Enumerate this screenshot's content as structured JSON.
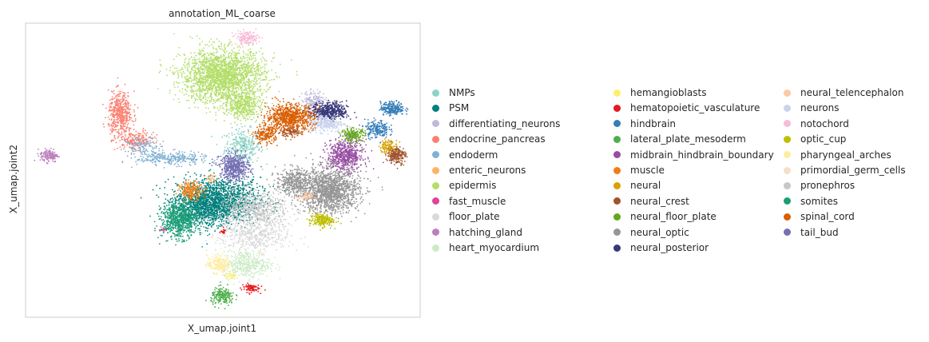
{
  "chart_data": {
    "type": "scatter",
    "title": "annotation_ML_coarse",
    "xlabel": "X_umap.joint1",
    "ylabel": "X_umap.joint2",
    "xlim": [
      0,
      100
    ],
    "ylim": [
      0,
      100
    ],
    "grid": false,
    "legend_position": "right",
    "series": [
      {
        "name": "NMPs",
        "color": "#8dd3c7",
        "clusters": [
          [
            55,
            58,
            3,
            4,
            320
          ]
        ]
      },
      {
        "name": "PSM",
        "color": "#00807d",
        "clusters": [
          [
            49,
            40,
            7,
            5,
            1400
          ],
          [
            45,
            37,
            5,
            4,
            700
          ]
        ]
      },
      {
        "name": "differentiating_neurons",
        "color": "#bebada",
        "clusters": [
          [
            73,
            74,
            2,
            2,
            150
          ]
        ]
      },
      {
        "name": "endocrine_pancreas",
        "color": "#fb8072",
        "clusters": [
          [
            24,
            69,
            2,
            5,
            500
          ],
          [
            28,
            60,
            3,
            2,
            200
          ]
        ]
      },
      {
        "name": "endoderm",
        "color": "#80b1d3",
        "clusters": [
          [
            37,
            54,
            6,
            1.5,
            300
          ],
          [
            30,
            58,
            3,
            2,
            120
          ]
        ]
      },
      {
        "name": "enteric_neurons",
        "color": "#fdb462",
        "clusters": [
          [
            47,
            47,
            1,
            1,
            25
          ]
        ]
      },
      {
        "name": "epidermis",
        "color": "#b3de69",
        "clusters": [
          [
            50,
            82,
            7,
            6,
            2200
          ],
          [
            55,
            72,
            3,
            3,
            400
          ]
        ]
      },
      {
        "name": "fast_muscle",
        "color": "#dd4499",
        "clusters": [
          [
            35,
            30,
            0.6,
            0.6,
            20
          ]
        ]
      },
      {
        "name": "floor_plate",
        "color": "#d9d9d9",
        "clusters": [
          [
            58,
            28,
            6,
            4,
            500
          ]
        ]
      },
      {
        "name": "hatching_gland",
        "color": "#bc80bd",
        "clusters": [
          [
            6,
            55,
            1.5,
            1.5,
            150
          ]
        ]
      },
      {
        "name": "heart_myocardium",
        "color": "#ccebc5",
        "clusters": [
          [
            56,
            18,
            4,
            3,
            400
          ]
        ]
      },
      {
        "name": "hemangioblasts",
        "color": "#ffed6f",
        "clusters": [
          [
            52,
            14,
            1,
            1,
            30
          ]
        ]
      },
      {
        "name": "hematopoietic_vasculature",
        "color": "#e41a1c",
        "clusters": [
          [
            57,
            10,
            1.5,
            1,
            80
          ],
          [
            50,
            29,
            0.6,
            0.6,
            20
          ]
        ]
      },
      {
        "name": "hindbrain",
        "color": "#377eb8",
        "clusters": [
          [
            93,
            71,
            2,
            1.5,
            250
          ],
          [
            89,
            64,
            2,
            2,
            200
          ]
        ]
      },
      {
        "name": "lateral_plate_mesoderm",
        "color": "#4daf4a",
        "clusters": [
          [
            50,
            7,
            2,
            2,
            200
          ]
        ]
      },
      {
        "name": "midbrain_hindbrain_boundary",
        "color": "#984ea3",
        "clusters": [
          [
            81,
            55,
            3,
            3.5,
            600
          ]
        ]
      },
      {
        "name": "muscle",
        "color": "#ef7f14",
        "clusters": [
          [
            42,
            43,
            2,
            2,
            200
          ]
        ]
      },
      {
        "name": "neural",
        "color": "#d7a300",
        "clusters": [
          [
            92,
            58,
            1.5,
            1.5,
            120
          ]
        ]
      },
      {
        "name": "neural_crest",
        "color": "#a0522d",
        "clusters": [
          [
            94,
            55,
            1.5,
            2,
            200
          ],
          [
            67,
            63,
            2,
            1,
            100
          ]
        ]
      },
      {
        "name": "neural_floor_plate",
        "color": "#66a61e",
        "clusters": [
          [
            83,
            62,
            2,
            1.5,
            200
          ]
        ]
      },
      {
        "name": "neural_optic",
        "color": "#969696",
        "clusters": [
          [
            77,
            43,
            5,
            5,
            1500
          ],
          [
            68,
            46,
            3,
            3,
            400
          ]
        ]
      },
      {
        "name": "neural_posterior",
        "color": "#38387a",
        "clusters": [
          [
            77,
            70,
            3,
            2,
            500
          ]
        ]
      },
      {
        "name": "neural_telencephalon",
        "color": "#fdc9a4",
        "clusters": [
          [
            71,
            41,
            1.2,
            1,
            50
          ]
        ]
      },
      {
        "name": "neurons",
        "color": "#cad3ed",
        "clusters": [
          [
            76,
            66,
            3,
            2,
            300
          ]
        ]
      },
      {
        "name": "notochord",
        "color": "#f6bcd8",
        "clusters": [
          [
            56,
            95,
            2,
            1.5,
            150
          ]
        ]
      },
      {
        "name": "optic_cup",
        "color": "#bfbf00",
        "clusters": [
          [
            75,
            33,
            2,
            1.5,
            200
          ]
        ]
      },
      {
        "name": "pharyngeal_arches",
        "color": "#ffeda0",
        "clusters": [
          [
            49,
            18,
            2,
            2,
            200
          ]
        ]
      },
      {
        "name": "primordial_germ_cells",
        "color": "#f5dfc8",
        "clusters": [
          [
            60,
            22,
            0.6,
            0.6,
            10
          ]
        ]
      },
      {
        "name": "pronephros",
        "color": "#c7c7c7",
        "clusters": [
          [
            58,
            37,
            6,
            4,
            600
          ]
        ]
      },
      {
        "name": "somites",
        "color": "#1b9e77",
        "clusters": [
          [
            39,
            33,
            3,
            4,
            700
          ]
        ]
      },
      {
        "name": "spinal_cord",
        "color": "#d95f02",
        "clusters": [
          [
            67,
            68,
            4,
            3,
            800
          ],
          [
            61,
            62,
            2,
            2,
            200
          ]
        ]
      },
      {
        "name": "tail_bud",
        "color": "#7570b3",
        "clusters": [
          [
            53,
            51,
            2.5,
            3,
            500
          ]
        ]
      }
    ]
  }
}
